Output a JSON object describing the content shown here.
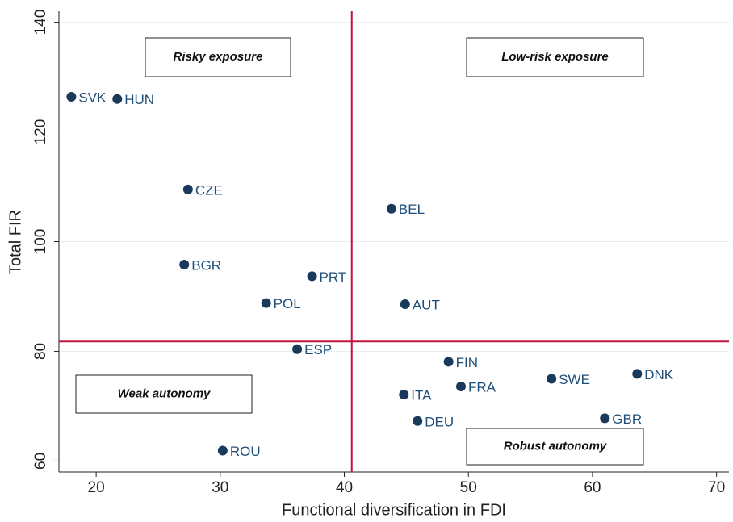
{
  "chart_data": {
    "type": "scatter",
    "x_label": "Functional diversification in FDI",
    "y_label": "Total FIR",
    "xlim": [
      17,
      71
    ],
    "ylim": [
      58,
      142
    ],
    "xticks": [
      20,
      30,
      40,
      50,
      60,
      70
    ],
    "yticks": [
      60,
      80,
      100,
      120,
      140
    ],
    "grid": true,
    "color": "#1a3a5c",
    "reference_color": "#c0143c",
    "vline": 40.6,
    "hline": 81.8,
    "annotations": [
      "Risky exposure",
      "Low-risk exposure",
      "Weak autonomy",
      "Robust autonomy"
    ],
    "labels": [
      "SVK",
      "HUN",
      "CZE",
      "BEL",
      "BGR",
      "PRT",
      "POL",
      "AUT",
      "ESP",
      "FIN",
      "SWE",
      "DNK",
      "FRA",
      "ITA",
      "DEU",
      "GBR",
      "ROU"
    ],
    "x": [
      18.0,
      21.7,
      27.4,
      43.8,
      27.1,
      37.4,
      33.7,
      44.9,
      36.2,
      48.4,
      56.7,
      63.6,
      49.4,
      44.8,
      45.9,
      61.0,
      30.2
    ],
    "values": [
      126.4,
      126.0,
      109.5,
      106.0,
      95.8,
      93.7,
      88.8,
      88.6,
      80.4,
      78.1,
      75.0,
      75.9,
      73.6,
      72.1,
      67.3,
      67.8,
      61.9
    ]
  }
}
